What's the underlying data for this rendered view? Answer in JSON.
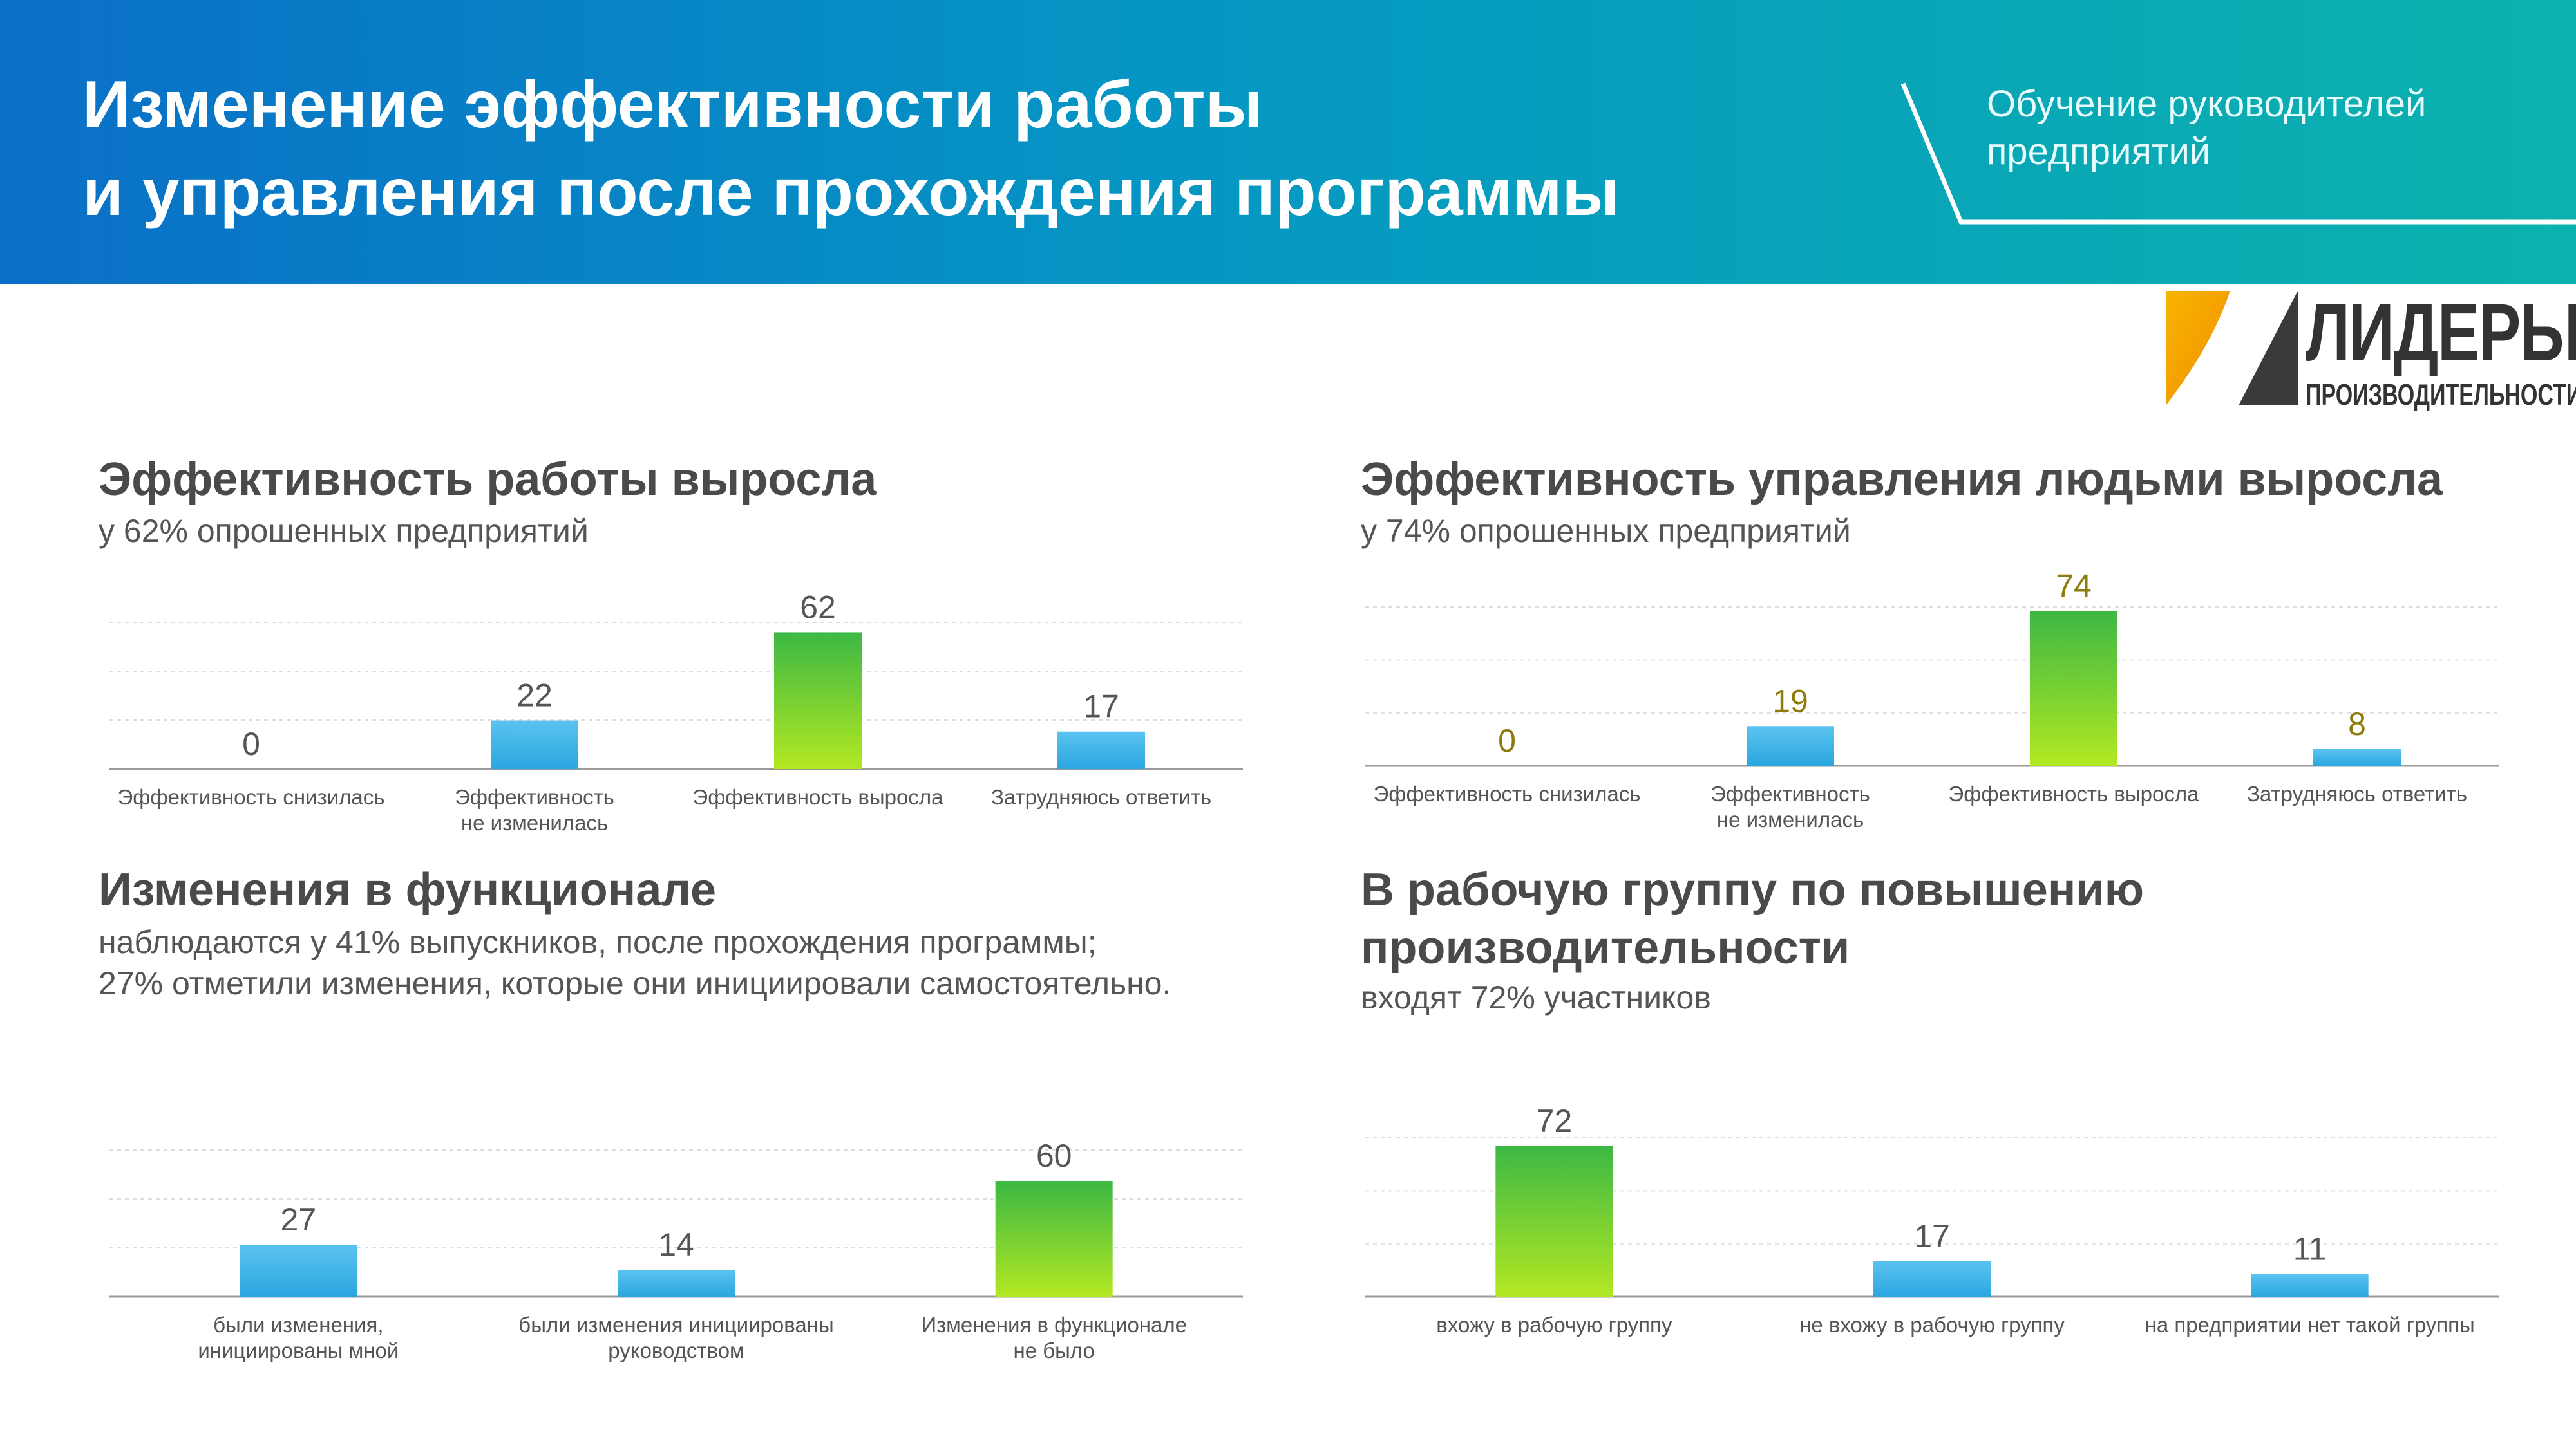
{
  "header": {
    "title_lines": [
      "Изменение эффективности работы",
      "и управления после прохождения программы"
    ],
    "subtitle_lines": [
      "Обучение руководителей",
      "предприятий"
    ]
  },
  "logo": {
    "line1": "ЛИДЕРЫ",
    "line2": "ПРОИЗВОДИТЕЛЬНОСТИ"
  },
  "panels": [
    {
      "title_lines": [
        "Эффективность работы  выросла"
      ],
      "subtitle_lines": [
        "у 62% опрошенных предприятий"
      ]
    },
    {
      "title_lines": [
        "Эффективность управления людьми выросла"
      ],
      "subtitle_lines": [
        "у 74% опрошенных предприятий"
      ]
    },
    {
      "title_lines": [
        "Изменения в функционале"
      ],
      "subtitle_lines": [
        "наблюдаются у 41% выпускников, после прохождения программы;",
        "27% отметили изменения, которые они инициировали самостоятельно."
      ]
    },
    {
      "title_lines": [
        "В рабочую группу по повышению",
        "производительности"
      ],
      "subtitle_lines": [
        "входят 72% участников"
      ]
    }
  ],
  "colors": {
    "bar_blue": "#2aa6e0",
    "bar_green": "#3cb844",
    "bar_green_light": "#b3e822",
    "olive_label": "#8c7a0a"
  },
  "chart_data": [
    {
      "type": "bar",
      "title": "",
      "categories": [
        [
          "Эффективность снизилась"
        ],
        [
          "Эффективность",
          "не изменилась"
        ],
        [
          "Эффективность выросла"
        ],
        [
          "Затрудняюсь ответить"
        ]
      ],
      "values": [
        0,
        22,
        62,
        17
      ],
      "highlight": [
        false,
        false,
        true,
        false
      ],
      "ylim": [
        0,
        70
      ],
      "grid": true,
      "label_color": "gray"
    },
    {
      "type": "bar",
      "title": "",
      "categories": [
        [
          "Эффективность снизилась"
        ],
        [
          "Эффективность",
          "не изменилась"
        ],
        [
          "Эффективность выросла"
        ],
        [
          "Затрудняюсь ответить"
        ]
      ],
      "values": [
        0,
        19,
        74,
        8
      ],
      "highlight": [
        false,
        false,
        true,
        false
      ],
      "ylim": [
        0,
        80
      ],
      "grid": true,
      "label_color": "olive"
    },
    {
      "type": "bar",
      "title": "",
      "categories": [
        [
          "были изменения,",
          "инициированы мной"
        ],
        [
          "были изменения инициированы",
          "руководством"
        ],
        [
          "Изменения в функционале",
          "не было"
        ]
      ],
      "values": [
        27,
        14,
        60
      ],
      "highlight": [
        false,
        false,
        true
      ],
      "ylim": [
        0,
        80
      ],
      "grid": true,
      "label_color": "gray"
    },
    {
      "type": "bar",
      "title": "",
      "categories": [
        [
          "вхожу в рабочую группу"
        ],
        [
          "не вхожу в рабочую группу"
        ],
        [
          "на предприятии нет такой группы"
        ]
      ],
      "values": [
        72,
        17,
        11
      ],
      "highlight": [
        true,
        false,
        false
      ],
      "ylim": [
        0,
        80
      ],
      "grid": true,
      "label_color": "gray"
    }
  ]
}
